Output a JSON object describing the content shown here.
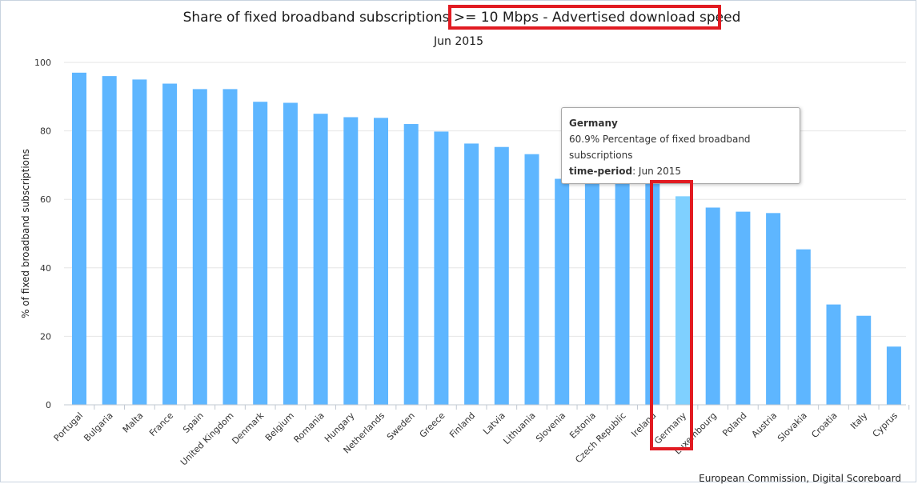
{
  "chart_data": {
    "type": "bar",
    "title_prefix": "Share of fixed broadband subscriptions ",
    "title_highlight": ">= 10 Mbps - Advertised download speed",
    "subtitle": "Jun 2015",
    "ylabel": "% of fixed broadband subscriptions",
    "xlabel": "",
    "ylim": [
      0,
      100
    ],
    "yticks": [
      0,
      20,
      40,
      60,
      80,
      100
    ],
    "grid": true,
    "categories": [
      "Portugal",
      "Bulgaria",
      "Malta",
      "France",
      "Spain",
      "United Kingdom",
      "Denmark",
      "Belgium",
      "Romania",
      "Hungary",
      "Netherlands",
      "Sweden",
      "Greece",
      "Finland",
      "Latvia",
      "Lithuania",
      "Slovenia",
      "Estonia",
      "Czech Republic",
      "Ireland",
      "Germany",
      "Luxembourg",
      "Poland",
      "Austria",
      "Slovakia",
      "Croatia",
      "Italy",
      "Cyprus"
    ],
    "values": [
      97,
      96,
      95,
      93.8,
      92.2,
      92.2,
      88.5,
      88.2,
      85,
      84,
      83.8,
      82,
      79.8,
      76.3,
      75.3,
      73.2,
      66,
      65.5,
      65.2,
      65,
      60.9,
      57.6,
      56.4,
      56,
      45.4,
      29.3,
      26,
      17
    ],
    "highlighted_category": "Germany",
    "bar_color": "#5eb6ff",
    "highlight_bar_color": "#7fd0ff",
    "credit": "European Commission, Digital Scoreboard"
  },
  "tooltip": {
    "title": "Germany",
    "line1": "60.9% Percentage of fixed broadband",
    "line2": "subscriptions",
    "field_label": "time-period",
    "field_value": ": Jun 2015"
  },
  "colors": {
    "annotation_box": "#e11b22",
    "grid": "#e6e6e6"
  }
}
